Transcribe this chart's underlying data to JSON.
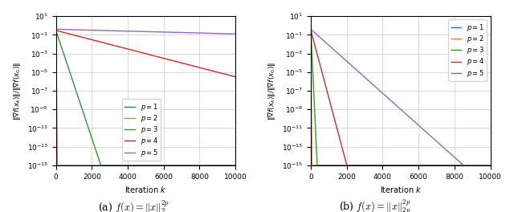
{
  "title_a": "(a) $f(x) = \\|x\\|_2^{2p}$",
  "title_b": "(b) $f(x) = \\|x\\|_{2p}^{2p}$",
  "ylabel": "$\\|\\nabla f(x_k)\\| / \\|\\nabla f(x_0)\\|$",
  "xlabel": "Iteration $k$",
  "xlim": [
    0,
    10000
  ],
  "ymin": 1e-15,
  "ymax": 10,
  "colors": {
    "p1": "#1f77b4",
    "p2": "#ff7f0e",
    "p3": "#2ca02c",
    "p4": "#d62728",
    "p5": "#9467bd"
  },
  "legend_labels": [
    "$p = 1$",
    "$p = 2$",
    "$p = 3$",
    "$p = 4$",
    "$p = 5$"
  ],
  "n_iter": 10001,
  "curve_a": {
    "p1": {
      "start": 0.3,
      "end_iter": 1,
      "log_end": -15
    },
    "p2": {
      "start": 0.3,
      "end_iter": 80,
      "log_end": -15
    },
    "p3": {
      "start": 0.3,
      "end_iter": 2500,
      "log_end": -15
    },
    "p4": {
      "start": 0.3,
      "log_end_at_10000": -5.5
    },
    "p5": {
      "start": 0.4,
      "log_end_at_10000": -0.9
    }
  },
  "curve_b": {
    "p1": {
      "start": 0.3,
      "end_iter": 1,
      "log_end": -15
    },
    "p2": {
      "start": 0.3,
      "end_iter": 50,
      "log_end": -15
    },
    "p3": {
      "start": 0.3,
      "end_iter": 350,
      "log_end": -15
    },
    "p4": {
      "start": 0.3,
      "end_iter": 2000,
      "log_end": -15
    },
    "p5": {
      "start": 0.4,
      "end_iter": 8500,
      "log_end": -15
    }
  }
}
